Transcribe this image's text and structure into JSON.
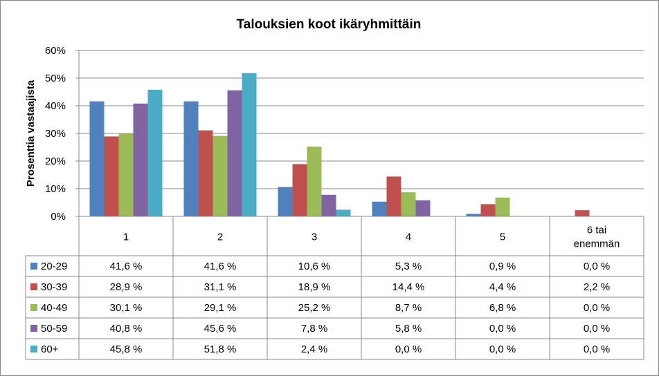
{
  "chart_data": {
    "type": "bar",
    "title": "Talouksien koot ikäryhmittäin",
    "ylabel": "Prosenttia vastaajista",
    "xlabel": "",
    "ylim": [
      0,
      60
    ],
    "yticks": [
      "0%",
      "10%",
      "20%",
      "30%",
      "40%",
      "50%",
      "60%"
    ],
    "grid": true,
    "legend": "data-table",
    "categories": [
      [
        "1"
      ],
      [
        "2"
      ],
      [
        "3"
      ],
      [
        "4"
      ],
      [
        "5"
      ],
      [
        "6 tai",
        "enemmän"
      ]
    ],
    "series": [
      {
        "name": "20-29",
        "color": "#4F81BD",
        "values": [
          41.6,
          41.6,
          10.6,
          5.3,
          0.9,
          0.0
        ],
        "labels": [
          "41,6 %",
          "41,6 %",
          "10,6 %",
          "5,3 %",
          "0,9 %",
          "0,0 %"
        ]
      },
      {
        "name": "30-39",
        "color": "#C0504D",
        "values": [
          28.9,
          31.1,
          18.9,
          14.4,
          4.4,
          2.2
        ],
        "labels": [
          "28,9 %",
          "31,1 %",
          "18,9 %",
          "14,4 %",
          "4,4 %",
          "2,2 %"
        ]
      },
      {
        "name": "40-49",
        "color": "#9BBB59",
        "values": [
          30.1,
          29.1,
          25.2,
          8.7,
          6.8,
          0.0
        ],
        "labels": [
          "30,1 %",
          "29,1 %",
          "25,2 %",
          "8,7 %",
          "6,8 %",
          "0,0 %"
        ]
      },
      {
        "name": "50-59",
        "color": "#8064A2",
        "values": [
          40.8,
          45.6,
          7.8,
          5.8,
          0.0,
          0.0
        ],
        "labels": [
          "40,8 %",
          "45,6 %",
          "7,8 %",
          "5,8 %",
          "0,0 %",
          "0,0 %"
        ]
      },
      {
        "name": "60+",
        "color": "#4BACC6",
        "values": [
          45.8,
          51.8,
          2.4,
          0.0,
          0.0,
          0.0
        ],
        "labels": [
          "45,8 %",
          "51,8 %",
          "2,4 %",
          "0,0 %",
          "0,0 %",
          "0,0 %"
        ]
      }
    ]
  }
}
